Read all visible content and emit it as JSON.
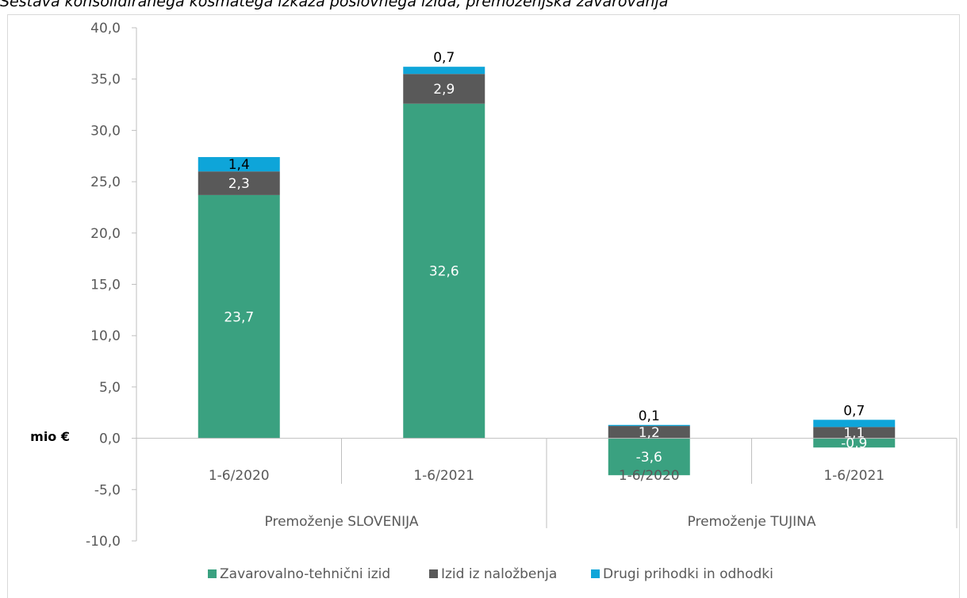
{
  "chart_data": {
    "type": "bar",
    "stacked": true,
    "title": "Sestava konsolidiranega kosmatega izkaza poslovnega izida, premoženjska zavarovanja",
    "ylabel": "mio €",
    "ylim": [
      -10,
      40
    ],
    "y_ticks": [
      "40,0",
      "35,0",
      "30,0",
      "25,0",
      "20,0",
      "15,0",
      "10,0",
      "5,0",
      "0,0",
      "-5,0",
      "-10,0"
    ],
    "categories": [
      "1-6/2020",
      "1-6/2021",
      "1-6/2020",
      "1-6/2021"
    ],
    "groups": [
      {
        "label": "Premoženje SLOVENIJA",
        "categories": [
          0,
          1
        ]
      },
      {
        "label": "Premoženje TUJINA",
        "categories": [
          2,
          3
        ]
      }
    ],
    "series": [
      {
        "name": "Zavarovalno-tehnični izid",
        "color": "#3aa180",
        "values": [
          23.7,
          32.6,
          -3.6,
          -0.9
        ],
        "labels": [
          "23,7",
          "32,6",
          "-3,6",
          "-0,9"
        ]
      },
      {
        "name": "Izid iz naložbenja",
        "color": "#595959",
        "values": [
          2.3,
          2.9,
          1.2,
          1.1
        ],
        "labels": [
          "2,3",
          "2,9",
          "1,2",
          "1,1"
        ]
      },
      {
        "name": "Drugi prihodki in odhodki",
        "color": "#0ea5d9",
        "values": [
          1.4,
          0.7,
          0.1,
          0.7
        ],
        "labels": [
          "1,4",
          "0,7",
          "0,1",
          "0,7"
        ]
      }
    ],
    "grid": false,
    "legend": "bottom"
  }
}
